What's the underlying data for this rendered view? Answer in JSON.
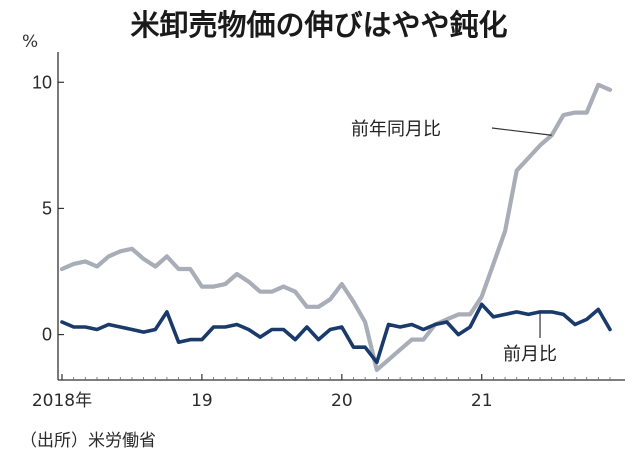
{
  "chart_data": {
    "type": "line",
    "title": "米卸売物価の伸びはやや鈍化",
    "unit": "%",
    "source": "（出所）米労働省",
    "ylim": [
      -1.8,
      11.2
    ],
    "yticks": [
      0,
      5,
      10
    ],
    "ytick_labels": [
      "0",
      "5",
      "10"
    ],
    "xticks": [
      {
        "label": "2018年",
        "date": "2018-01"
      },
      {
        "label": "19",
        "date": "2019-01"
      },
      {
        "label": "20",
        "date": "2020-01"
      },
      {
        "label": "21",
        "date": "2021-01"
      }
    ],
    "grid": false,
    "x": [
      "2018-01",
      "2018-02",
      "2018-03",
      "2018-04",
      "2018-05",
      "2018-06",
      "2018-07",
      "2018-08",
      "2018-09",
      "2018-10",
      "2018-11",
      "2018-12",
      "2019-01",
      "2019-02",
      "2019-03",
      "2019-04",
      "2019-05",
      "2019-06",
      "2019-07",
      "2019-08",
      "2019-09",
      "2019-10",
      "2019-11",
      "2019-12",
      "2020-01",
      "2020-02",
      "2020-03",
      "2020-04",
      "2020-05",
      "2020-06",
      "2020-07",
      "2020-08",
      "2020-09",
      "2020-10",
      "2020-11",
      "2020-12",
      "2021-01",
      "2021-02",
      "2021-03",
      "2021-04",
      "2021-05",
      "2021-06",
      "2021-07",
      "2021-08",
      "2021-09",
      "2021-10",
      "2021-11",
      "2021-12"
    ],
    "series": [
      {
        "name": "前年同月比",
        "color": "#a9adb8",
        "values": [
          2.6,
          2.8,
          2.9,
          2.7,
          3.1,
          3.3,
          3.4,
          3.0,
          2.7,
          3.1,
          2.6,
          2.6,
          1.9,
          1.9,
          2.0,
          2.4,
          2.1,
          1.7,
          1.7,
          1.9,
          1.7,
          1.1,
          1.1,
          1.4,
          2.0,
          1.3,
          0.5,
          -1.4,
          -1.0,
          -0.6,
          -0.2,
          -0.2,
          0.4,
          0.6,
          0.8,
          0.8,
          1.5,
          2.8,
          4.1,
          6.5,
          7.0,
          7.5,
          7.9,
          8.7,
          8.8,
          8.8,
          9.9,
          9.7
        ]
      },
      {
        "name": "前月比",
        "color": "#1a3a6b",
        "values": [
          0.5,
          0.3,
          0.3,
          0.2,
          0.4,
          0.3,
          0.2,
          0.1,
          0.2,
          0.9,
          -0.3,
          -0.2,
          -0.2,
          0.3,
          0.3,
          0.4,
          0.2,
          -0.1,
          0.2,
          0.2,
          -0.2,
          0.3,
          -0.2,
          0.2,
          0.3,
          -0.5,
          -0.5,
          -1.1,
          0.4,
          0.3,
          0.4,
          0.2,
          0.4,
          0.5,
          0.0,
          0.3,
          1.2,
          0.7,
          0.8,
          0.9,
          0.8,
          0.9,
          0.9,
          0.8,
          0.4,
          0.6,
          1.0,
          0.2
        ]
      }
    ],
    "annotations": [
      {
        "text": "前年同月比",
        "series": "前年同月比"
      },
      {
        "text": "前月比",
        "series": "前月比"
      }
    ]
  }
}
